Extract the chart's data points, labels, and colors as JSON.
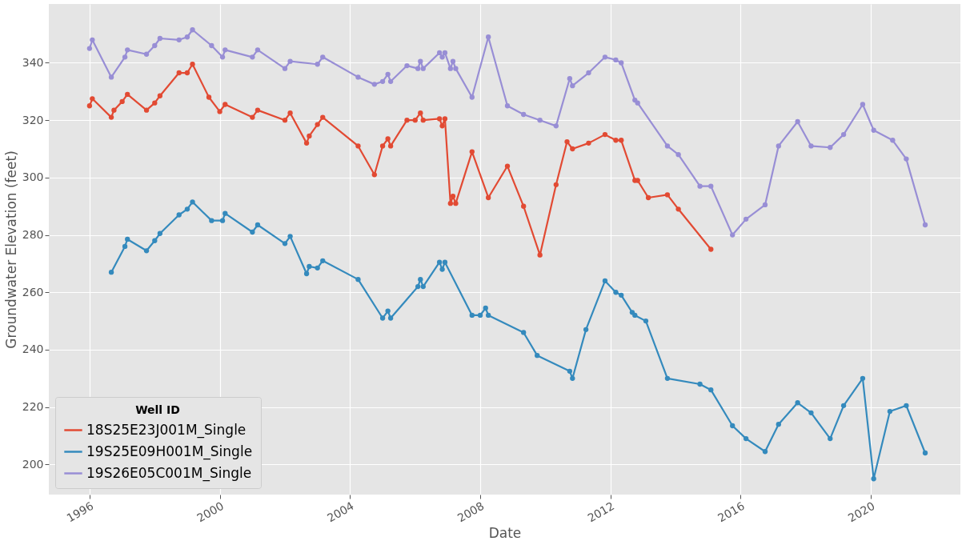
{
  "chart_data": {
    "type": "line",
    "xlabel": "Date",
    "ylabel": "Groundwater Elevation (feet)",
    "legend_title": "Well ID",
    "legend": "bottom left",
    "grid": true,
    "marker": "circle",
    "line_style": "solid",
    "xlim": [
      "1994-10",
      "2022-10"
    ],
    "xticks": [
      "1996",
      "2000",
      "2004",
      "2008",
      "2012",
      "2016",
      "2020"
    ],
    "ylim": [
      189.5,
      360.5
    ],
    "yticks": [
      200,
      220,
      240,
      260,
      280,
      300,
      320,
      340
    ],
    "series": [
      {
        "name": "18S25E23J001M_Single",
        "color": "#e24a33",
        "x": [
          "1996-01",
          "1996-02",
          "1996-09",
          "1996-10",
          "1997-01",
          "1997-03",
          "1997-10",
          "1998-01",
          "1998-03",
          "1998-10",
          "1999-01",
          "1999-03",
          "1999-09",
          "2000-01",
          "2000-03",
          "2001-01",
          "2001-03",
          "2002-01",
          "2002-03",
          "2002-09",
          "2002-10",
          "2003-01",
          "2003-03",
          "2004-04",
          "2004-10",
          "2005-01",
          "2005-03",
          "2005-04",
          "2005-10",
          "2006-01",
          "2006-03",
          "2006-04",
          "2006-10",
          "2006-11",
          "2006-12",
          "2007-02",
          "2007-03",
          "2007-04",
          "2007-10",
          "2008-04",
          "2008-11",
          "2009-05",
          "2009-11",
          "2010-05",
          "2010-09",
          "2010-11",
          "2011-05",
          "2011-11",
          "2012-03",
          "2012-05",
          "2012-10",
          "2012-11",
          "2013-03",
          "2013-10",
          "2014-02",
          "2015-02"
        ],
        "values": [
          325,
          327.5,
          321,
          323.5,
          326.5,
          329,
          323.5,
          326,
          328.5,
          336.5,
          336.5,
          339.5,
          328,
          323,
          325.5,
          321,
          323.5,
          320,
          322.5,
          312,
          314.5,
          318.5,
          321,
          311,
          301,
          311,
          313.5,
          311,
          320,
          320,
          322.5,
          320,
          320.5,
          318,
          320.5,
          291,
          293.5,
          291,
          309,
          293,
          304,
          290,
          273,
          297.5,
          312.5,
          310,
          312,
          315,
          313,
          313,
          299,
          299,
          293,
          294,
          289,
          275
        ]
      },
      {
        "name": "19S25E09H001M_Single",
        "color": "#348abd",
        "x": [
          "1996-09",
          "1997-02",
          "1997-03",
          "1997-10",
          "1998-01",
          "1998-03",
          "1998-10",
          "1999-01",
          "1999-03",
          "1999-10",
          "2000-02",
          "2000-03",
          "2001-01",
          "2001-03",
          "2002-01",
          "2002-03",
          "2002-09",
          "2002-10",
          "2003-01",
          "2003-03",
          "2004-04",
          "2005-01",
          "2005-03",
          "2005-04",
          "2006-02",
          "2006-03",
          "2006-04",
          "2006-10",
          "2006-11",
          "2006-12",
          "2007-10",
          "2008-01",
          "2008-03",
          "2008-04",
          "2009-05",
          "2009-10",
          "2010-10",
          "2010-11",
          "2011-04",
          "2011-11",
          "2012-03",
          "2012-05",
          "2012-09",
          "2012-10",
          "2013-02",
          "2013-10",
          "2014-10",
          "2015-02",
          "2015-10",
          "2016-03",
          "2016-10",
          "2017-03",
          "2017-10",
          "2018-03",
          "2018-10",
          "2019-03",
          "2019-10",
          "2020-02",
          "2020-08",
          "2021-02",
          "2021-09"
        ],
        "values": [
          267,
          276,
          278.5,
          274.5,
          278,
          280.5,
          287,
          289,
          291.5,
          285,
          285,
          287.5,
          281,
          283.5,
          277,
          279.5,
          266.5,
          269,
          268.5,
          271,
          264.5,
          251,
          253.5,
          251,
          262,
          264.5,
          262,
          270.5,
          268,
          270.5,
          252,
          252,
          254.5,
          252,
          246,
          238,
          232.5,
          230,
          247,
          264,
          260,
          259,
          253,
          252,
          250,
          230,
          228,
          226,
          213.5,
          209,
          204.5,
          214,
          221.5,
          218,
          209,
          220.5,
          230,
          195,
          218.5,
          220.5,
          204
        ]
      },
      {
        "name": "19S26E05C001M_Single",
        "color": "#988ed5",
        "x": [
          "1996-01",
          "1996-02",
          "1996-09",
          "1997-02",
          "1997-03",
          "1997-10",
          "1998-01",
          "1998-03",
          "1998-10",
          "1999-01",
          "1999-03",
          "1999-10",
          "2000-02",
          "2000-03",
          "2001-01",
          "2001-03",
          "2002-01",
          "2002-03",
          "2003-01",
          "2003-03",
          "2004-04",
          "2004-10",
          "2005-01",
          "2005-03",
          "2005-04",
          "2005-10",
          "2006-02",
          "2006-03",
          "2006-04",
          "2006-10",
          "2006-11",
          "2006-12",
          "2007-02",
          "2007-03",
          "2007-04",
          "2007-10",
          "2008-04",
          "2008-11",
          "2009-05",
          "2009-11",
          "2010-05",
          "2010-10",
          "2010-11",
          "2011-05",
          "2011-11",
          "2012-03",
          "2012-05",
          "2012-10",
          "2012-11",
          "2013-10",
          "2014-02",
          "2014-10",
          "2015-02",
          "2015-10",
          "2016-03",
          "2016-10",
          "2017-03",
          "2017-10",
          "2018-03",
          "2018-10",
          "2019-03",
          "2019-10",
          "2020-02",
          "2020-09",
          "2021-02",
          "2021-09"
        ],
        "values": [
          345,
          348,
          335,
          342,
          344.5,
          343,
          346,
          348.5,
          348,
          349,
          351.5,
          346,
          342,
          344.5,
          342,
          344.5,
          338,
          340.5,
          339.5,
          342,
          335,
          332.5,
          333.5,
          336,
          333.5,
          339,
          338,
          340.5,
          338,
          343.5,
          342,
          343.5,
          338,
          340.5,
          338,
          328,
          349,
          325,
          322,
          320,
          318,
          334.5,
          332,
          336.5,
          342,
          341,
          340,
          327,
          326,
          311,
          308,
          297,
          297,
          280,
          285.5,
          290.5,
          311,
          319.5,
          311,
          310.5,
          315,
          325.5,
          316.5,
          313,
          306.5,
          283.5
        ]
      }
    ]
  }
}
